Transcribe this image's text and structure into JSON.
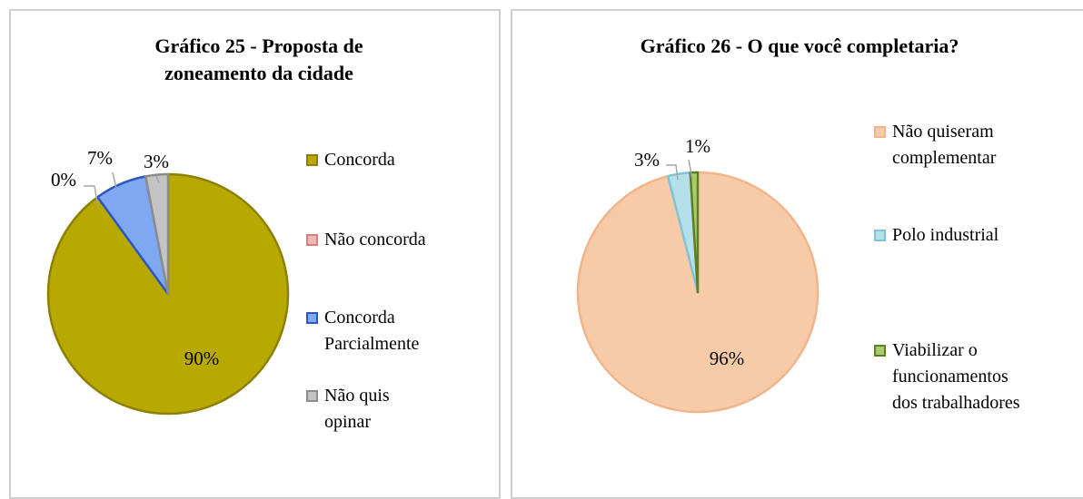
{
  "chart_data": [
    {
      "type": "pie",
      "title": "Gráfico 25 - Proposta de zoneamento da cidade",
      "categories": [
        "Concorda",
        "Não concorda",
        "Concorda Parcialmente",
        "Não quis opinar"
      ],
      "values": [
        90,
        0,
        7,
        3
      ],
      "value_labels": [
        "90%",
        "0%",
        "7%",
        "3%"
      ],
      "colors": [
        "#b8a900",
        "#f2b8b8",
        "#7ea8f2",
        "#c4c4c4"
      ],
      "edge_colors": [
        "#8c8000",
        "#d87f7f",
        "#2f55c0",
        "#8c8c8c"
      ]
    },
    {
      "type": "pie",
      "title": "Gráfico 26 - O que você completaria?",
      "categories": [
        "Não quiseram complementar",
        "Polo industrial",
        "Viabilizar o funcionamentos dos trabalhadores"
      ],
      "values": [
        96,
        3,
        1
      ],
      "value_labels": [
        "96%",
        "3%",
        "1%"
      ],
      "colors": [
        "#f8cba8",
        "#b5e0ea",
        "#a9cc6a"
      ],
      "edge_colors": [
        "#f3b48a",
        "#7fc4d6",
        "#5b7f22"
      ]
    }
  ]
}
